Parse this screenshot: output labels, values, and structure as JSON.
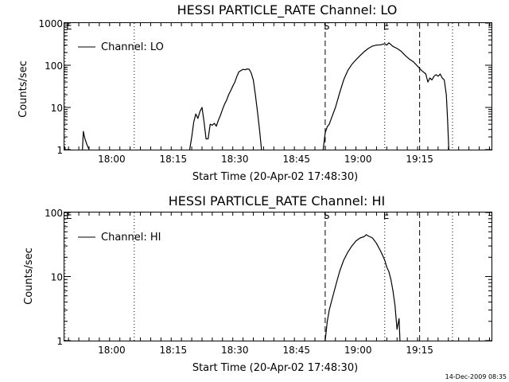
{
  "footer": {
    "date_stamp": "14-Dec-2009 08:35"
  },
  "chart_data": [
    {
      "type": "line",
      "title": "HESSI PARTICLE_RATE Channel: LO",
      "xlabel": "Start Time (20-Apr-02 17:48:30)",
      "ylabel": "Counts/sec",
      "yscale": "log",
      "ylim": [
        1,
        1000
      ],
      "xlim_minutes": [
        0,
        104
      ],
      "x_tick_labels": [
        "18:00",
        "18:15",
        "18:30",
        "18:45",
        "19:00",
        "19:15"
      ],
      "x_tick_minutes": [
        11.5,
        26.5,
        41.5,
        56.5,
        71.5,
        86.5
      ],
      "y_tick_labels": [
        "1",
        "10",
        "100",
        "1000"
      ],
      "y_tick_values": [
        1,
        10,
        100,
        1000
      ],
      "legend": {
        "label": "Channel: LO",
        "position": "top-left"
      },
      "markers": [
        {
          "label": "E",
          "minute": 0,
          "style": "dotted"
        },
        {
          "label": "",
          "minute": 17,
          "style": "dotted"
        },
        {
          "label": "S",
          "minute": 63.5,
          "style": "dashed"
        },
        {
          "label": "E",
          "minute": 78,
          "style": "dotted"
        },
        {
          "label": "",
          "minute": 86.5,
          "style": "dashed"
        },
        {
          "label": "",
          "minute": 94.5,
          "style": "dotted"
        }
      ],
      "series": [
        {
          "segments": [
            [
              [
                0,
                1.2
              ],
              [
                0.2,
                0.9
              ]
            ],
            [
              [
                4.4,
                1.0
              ],
              [
                4.6,
                2.7
              ],
              [
                5.0,
                1.8
              ],
              [
                5.5,
                1.3
              ],
              [
                6.0,
                0.9
              ]
            ],
            [
              [
                30.5,
                0.9
              ],
              [
                31.0,
                2.0
              ],
              [
                31.5,
                4.5
              ],
              [
                32.0,
                7.0
              ],
              [
                32.5,
                5.5
              ],
              [
                33.0,
                8.0
              ],
              [
                33.5,
                10.0
              ],
              [
                34.0,
                4.5
              ],
              [
                34.5,
                1.8
              ],
              [
                35.0,
                1.8
              ],
              [
                35.5,
                4.0
              ],
              [
                36.0,
                3.8
              ],
              [
                36.5,
                4.2
              ],
              [
                37.0,
                3.6
              ],
              [
                37.5,
                5.0
              ],
              [
                38.0,
                6.5
              ],
              [
                38.5,
                9.0
              ],
              [
                39.0,
                12.0
              ],
              [
                39.5,
                15.0
              ],
              [
                40.0,
                20.0
              ],
              [
                40.5,
                25.0
              ],
              [
                41.0,
                32.0
              ],
              [
                41.5,
                40.0
              ],
              [
                42.0,
                55.0
              ],
              [
                42.5,
                70.0
              ],
              [
                43.0,
                75.0
              ],
              [
                43.5,
                80.0
              ],
              [
                44.0,
                78.0
              ],
              [
                44.5,
                82.0
              ],
              [
                45.0,
                80.0
              ],
              [
                45.5,
                65.0
              ],
              [
                46.0,
                45.0
              ],
              [
                46.5,
                20.0
              ],
              [
                47.0,
                8.0
              ],
              [
                47.5,
                3.0
              ],
              [
                48.0,
                1.0
              ]
            ],
            [
              [
                63.0,
                0.9
              ],
              [
                63.5,
                2.5
              ],
              [
                64.0,
                3.5
              ],
              [
                64.5,
                4.0
              ],
              [
                65.0,
                5.5
              ],
              [
                66.0,
                10.0
              ],
              [
                67.0,
                22.0
              ],
              [
                68.0,
                45.0
              ],
              [
                69.0,
                75.0
              ],
              [
                70.0,
                105.0
              ],
              [
                71.0,
                135.0
              ],
              [
                72.0,
                170.0
              ],
              [
                73.0,
                210.0
              ],
              [
                74.0,
                250.0
              ],
              [
                75.0,
                285.0
              ],
              [
                76.0,
                300.0
              ],
              [
                77.0,
                305.0
              ],
              [
                78.0,
                325.0
              ],
              [
                78.5,
                300.0
              ],
              [
                79.0,
                340.0
              ],
              [
                79.5,
                310.0
              ],
              [
                80.0,
                280.0
              ],
              [
                81.0,
                250.0
              ],
              [
                82.0,
                215.0
              ],
              [
                83.0,
                170.0
              ],
              [
                84.0,
                140.0
              ],
              [
                85.0,
                120.0
              ],
              [
                86.0,
                95.0
              ],
              [
                87.0,
                75.0
              ],
              [
                88.0,
                62.0
              ],
              [
                88.5,
                40.0
              ],
              [
                89.0,
                50.0
              ],
              [
                89.5,
                45.0
              ],
              [
                90.0,
                55.0
              ],
              [
                90.5,
                60.0
              ],
              [
                91.0,
                55.0
              ],
              [
                91.5,
                62.0
              ],
              [
                92.0,
                50.0
              ],
              [
                92.5,
                45.0
              ],
              [
                93.0,
                20.0
              ],
              [
                93.3,
                5.0
              ],
              [
                93.6,
                1.0
              ]
            ]
          ]
        }
      ]
    },
    {
      "type": "line",
      "title": "HESSI PARTICLE_RATE Channel: HI",
      "xlabel": "Start Time (20-Apr-02 17:48:30)",
      "ylabel": "Counts/sec",
      "yscale": "log",
      "ylim": [
        1,
        100
      ],
      "xlim_minutes": [
        0,
        104
      ],
      "x_tick_labels": [
        "18:00",
        "18:15",
        "18:30",
        "18:45",
        "19:00",
        "19:15"
      ],
      "x_tick_minutes": [
        11.5,
        26.5,
        41.5,
        56.5,
        71.5,
        86.5
      ],
      "y_tick_labels": [
        "1",
        "10",
        "100"
      ],
      "y_tick_values": [
        1,
        10,
        100
      ],
      "legend": {
        "label": "Channel: HI",
        "position": "top-left"
      },
      "markers": [
        {
          "label": "E",
          "minute": 0,
          "style": "dotted"
        },
        {
          "label": "",
          "minute": 17,
          "style": "dotted"
        },
        {
          "label": "S",
          "minute": 63.5,
          "style": "dashed"
        },
        {
          "label": "E",
          "minute": 78,
          "style": "dotted"
        },
        {
          "label": "",
          "minute": 86.5,
          "style": "dashed"
        },
        {
          "label": "",
          "minute": 94.5,
          "style": "dotted"
        }
      ],
      "series": [
        {
          "segments": [
            [
              [
                63.5,
                0.9
              ],
              [
                64.0,
                2.0
              ],
              [
                64.5,
                3.0
              ],
              [
                65.0,
                4.0
              ],
              [
                66.0,
                7.0
              ],
              [
                67.0,
                12.0
              ],
              [
                68.0,
                18.0
              ],
              [
                69.0,
                24.0
              ],
              [
                70.0,
                30.0
              ],
              [
                71.0,
                36.0
              ],
              [
                72.0,
                40.0
              ],
              [
                73.0,
                42.0
              ],
              [
                73.5,
                45.0
              ],
              [
                74.0,
                43.0
              ],
              [
                75.0,
                40.0
              ],
              [
                76.0,
                33.0
              ],
              [
                77.0,
                25.0
              ],
              [
                78.0,
                18.0
              ],
              [
                78.5,
                14.0
              ],
              [
                79.0,
                12.0
              ],
              [
                79.5,
                9.0
              ],
              [
                80.0,
                6.0
              ],
              [
                80.5,
                3.5
              ],
              [
                81.0,
                1.5
              ],
              [
                81.5,
                2.2
              ],
              [
                81.7,
                1.0
              ]
            ]
          ]
        }
      ]
    }
  ]
}
